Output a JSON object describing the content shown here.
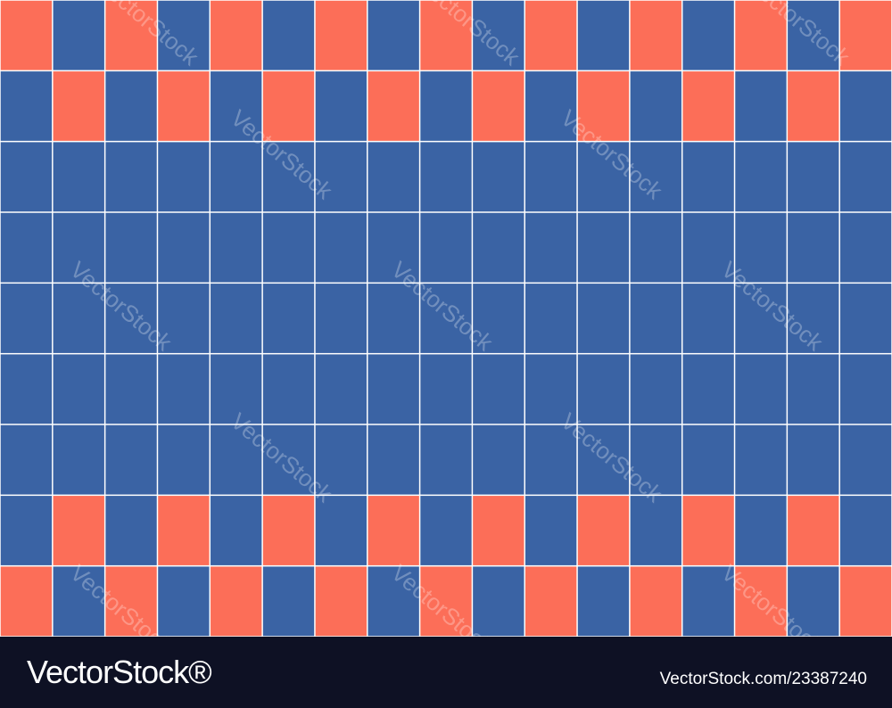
{
  "watermark": "VectorStock",
  "footer": {
    "logo": "VectorStock®",
    "credit": "VectorStock.com/23387240"
  }
}
